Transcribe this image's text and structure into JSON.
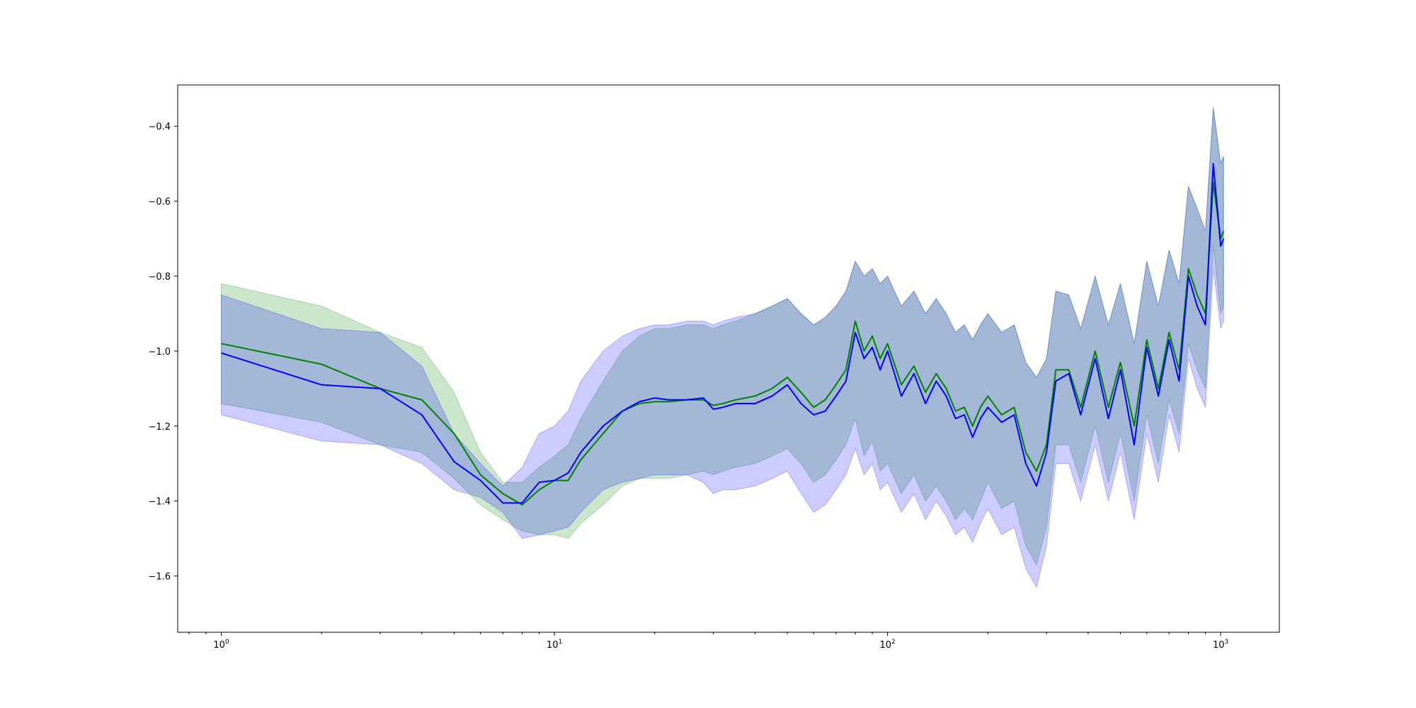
{
  "chart_data": {
    "type": "line",
    "title": "",
    "xlabel": "",
    "ylabel": "",
    "xscale": "log",
    "xlim": [
      0.74,
      1500
    ],
    "ylim": [
      -1.75,
      -0.29
    ],
    "grid": false,
    "legend": "none",
    "x_ticks": [
      {
        "base": "10",
        "exp": "0",
        "value": 1
      },
      {
        "base": "10",
        "exp": "1",
        "value": 10
      },
      {
        "base": "10",
        "exp": "2",
        "value": 100
      },
      {
        "base": "10",
        "exp": "3",
        "value": 1000
      }
    ],
    "y_ticks": [
      {
        "label": "−0.4",
        "value": -0.4
      },
      {
        "label": "−0.6",
        "value": -0.6
      },
      {
        "label": "−0.8",
        "value": -0.8
      },
      {
        "label": "−1.0",
        "value": -1.0
      },
      {
        "label": "−1.2",
        "value": -1.2
      },
      {
        "label": "−1.4",
        "value": -1.4
      },
      {
        "label": "−1.6",
        "value": -1.6
      }
    ],
    "series": [
      {
        "color": "#008000",
        "band_color": "#008000",
        "x": [
          1,
          2,
          3,
          4,
          5,
          6,
          7,
          8,
          9,
          10,
          11,
          12,
          14,
          16,
          18,
          20,
          22,
          25,
          28,
          30,
          32,
          35,
          40,
          45,
          50,
          55,
          60,
          65,
          70,
          75,
          80,
          85,
          90,
          95,
          100,
          110,
          120,
          130,
          140,
          150,
          160,
          170,
          180,
          190,
          200,
          220,
          240,
          260,
          280,
          300,
          320,
          350,
          380,
          420,
          460,
          500,
          550,
          600,
          650,
          700,
          750,
          800,
          850,
          900,
          950,
          1000,
          1020
        ],
        "y": [
          -0.98,
          -1.035,
          -1.1,
          -1.13,
          -1.22,
          -1.33,
          -1.38,
          -1.41,
          -1.37,
          -1.345,
          -1.345,
          -1.29,
          -1.22,
          -1.16,
          -1.14,
          -1.135,
          -1.135,
          -1.13,
          -1.13,
          -1.145,
          -1.14,
          -1.13,
          -1.12,
          -1.1,
          -1.07,
          -1.11,
          -1.15,
          -1.13,
          -1.09,
          -1.05,
          -0.92,
          -1.0,
          -0.96,
          -1.02,
          -0.98,
          -1.09,
          -1.04,
          -1.11,
          -1.06,
          -1.1,
          -1.16,
          -1.15,
          -1.2,
          -1.15,
          -1.12,
          -1.17,
          -1.15,
          -1.27,
          -1.32,
          -1.25,
          -1.05,
          -1.05,
          -1.15,
          -1.0,
          -1.15,
          -1.03,
          -1.2,
          -0.97,
          -1.1,
          -0.95,
          -1.05,
          -0.78,
          -0.85,
          -0.9,
          -0.55,
          -0.7,
          -0.68
        ],
        "lower": [
          -1.14,
          -1.19,
          -1.25,
          -1.27,
          -1.34,
          -1.41,
          -1.45,
          -1.48,
          -1.49,
          -1.49,
          -1.5,
          -1.46,
          -1.41,
          -1.36,
          -1.34,
          -1.34,
          -1.34,
          -1.33,
          -1.32,
          -1.33,
          -1.32,
          -1.31,
          -1.3,
          -1.28,
          -1.26,
          -1.3,
          -1.35,
          -1.33,
          -1.29,
          -1.25,
          -1.18,
          -1.28,
          -1.24,
          -1.32,
          -1.3,
          -1.38,
          -1.33,
          -1.4,
          -1.36,
          -1.4,
          -1.45,
          -1.42,
          -1.45,
          -1.4,
          -1.35,
          -1.42,
          -1.4,
          -1.52,
          -1.57,
          -1.47,
          -1.25,
          -1.25,
          -1.35,
          -1.2,
          -1.35,
          -1.22,
          -1.4,
          -1.17,
          -1.3,
          -1.13,
          -1.22,
          -0.98,
          -1.05,
          -1.1,
          -0.72,
          -0.9,
          -0.88
        ],
        "upper": [
          -0.82,
          -0.88,
          -0.95,
          -0.99,
          -1.11,
          -1.27,
          -1.35,
          -1.35,
          -1.31,
          -1.28,
          -1.25,
          -1.18,
          -1.08,
          -1.0,
          -0.96,
          -0.94,
          -0.94,
          -0.93,
          -0.93,
          -0.94,
          -0.93,
          -0.92,
          -0.9,
          -0.88,
          -0.86,
          -0.9,
          -0.93,
          -0.91,
          -0.88,
          -0.84,
          -0.76,
          -0.8,
          -0.78,
          -0.82,
          -0.8,
          -0.88,
          -0.84,
          -0.9,
          -0.86,
          -0.9,
          -0.95,
          -0.93,
          -0.97,
          -0.93,
          -0.9,
          -0.95,
          -0.93,
          -1.03,
          -1.07,
          -1.02,
          -0.84,
          -0.85,
          -0.94,
          -0.8,
          -0.93,
          -0.82,
          -0.98,
          -0.76,
          -0.88,
          -0.73,
          -0.82,
          -0.56,
          -0.62,
          -0.68,
          -0.35,
          -0.5,
          -0.48
        ]
      },
      {
        "color": "#0000ff",
        "band_color": "#0000ff",
        "x": [
          1,
          2,
          3,
          4,
          5,
          6,
          7,
          8,
          9,
          10,
          11,
          12,
          14,
          16,
          18,
          20,
          22,
          25,
          28,
          30,
          32,
          35,
          40,
          45,
          50,
          55,
          60,
          65,
          70,
          75,
          80,
          85,
          90,
          95,
          100,
          110,
          120,
          130,
          140,
          150,
          160,
          170,
          180,
          190,
          200,
          220,
          240,
          260,
          280,
          300,
          320,
          350,
          380,
          420,
          460,
          500,
          550,
          600,
          650,
          700,
          750,
          800,
          850,
          900,
          950,
          1000,
          1020
        ],
        "y": [
          -1.005,
          -1.09,
          -1.1,
          -1.17,
          -1.295,
          -1.345,
          -1.405,
          -1.405,
          -1.35,
          -1.345,
          -1.325,
          -1.27,
          -1.2,
          -1.16,
          -1.135,
          -1.125,
          -1.13,
          -1.13,
          -1.125,
          -1.155,
          -1.15,
          -1.14,
          -1.14,
          -1.12,
          -1.09,
          -1.14,
          -1.17,
          -1.16,
          -1.12,
          -1.08,
          -0.95,
          -1.02,
          -0.99,
          -1.05,
          -1.0,
          -1.12,
          -1.06,
          -1.14,
          -1.08,
          -1.12,
          -1.18,
          -1.17,
          -1.23,
          -1.18,
          -1.15,
          -1.19,
          -1.17,
          -1.3,
          -1.36,
          -1.27,
          -1.08,
          -1.06,
          -1.17,
          -1.02,
          -1.18,
          -1.05,
          -1.25,
          -0.99,
          -1.12,
          -0.97,
          -1.08,
          -0.8,
          -0.88,
          -0.93,
          -0.5,
          -0.72,
          -0.7
        ],
        "lower": [
          -1.17,
          -1.24,
          -1.25,
          -1.3,
          -1.37,
          -1.39,
          -1.43,
          -1.5,
          -1.49,
          -1.48,
          -1.47,
          -1.43,
          -1.37,
          -1.35,
          -1.34,
          -1.33,
          -1.33,
          -1.33,
          -1.35,
          -1.38,
          -1.37,
          -1.37,
          -1.36,
          -1.34,
          -1.32,
          -1.38,
          -1.43,
          -1.41,
          -1.37,
          -1.33,
          -1.26,
          -1.33,
          -1.3,
          -1.37,
          -1.35,
          -1.43,
          -1.38,
          -1.45,
          -1.4,
          -1.44,
          -1.49,
          -1.47,
          -1.51,
          -1.46,
          -1.42,
          -1.49,
          -1.47,
          -1.58,
          -1.63,
          -1.52,
          -1.3,
          -1.3,
          -1.4,
          -1.25,
          -1.4,
          -1.27,
          -1.45,
          -1.22,
          -1.35,
          -1.17,
          -1.27,
          -1.02,
          -1.1,
          -1.15,
          -0.78,
          -0.94,
          -0.92
        ],
        "upper": [
          -0.85,
          -0.94,
          -0.95,
          -1.04,
          -1.22,
          -1.3,
          -1.36,
          -1.31,
          -1.22,
          -1.2,
          -1.16,
          -1.08,
          -1.0,
          -0.96,
          -0.94,
          -0.93,
          -0.93,
          -0.92,
          -0.92,
          -0.93,
          -0.92,
          -0.91,
          -0.9,
          -0.88,
          -0.86,
          -0.9,
          -0.93,
          -0.91,
          -0.88,
          -0.84,
          -0.76,
          -0.8,
          -0.78,
          -0.82,
          -0.8,
          -0.88,
          -0.84,
          -0.9,
          -0.86,
          -0.9,
          -0.95,
          -0.93,
          -0.97,
          -0.93,
          -0.9,
          -0.95,
          -0.93,
          -1.03,
          -1.07,
          -1.02,
          -0.84,
          -0.85,
          -0.94,
          -0.8,
          -0.93,
          -0.82,
          -0.98,
          -0.76,
          -0.88,
          -0.73,
          -0.82,
          -0.56,
          -0.62,
          -0.68,
          -0.35,
          -0.5,
          -0.48
        ]
      }
    ]
  }
}
